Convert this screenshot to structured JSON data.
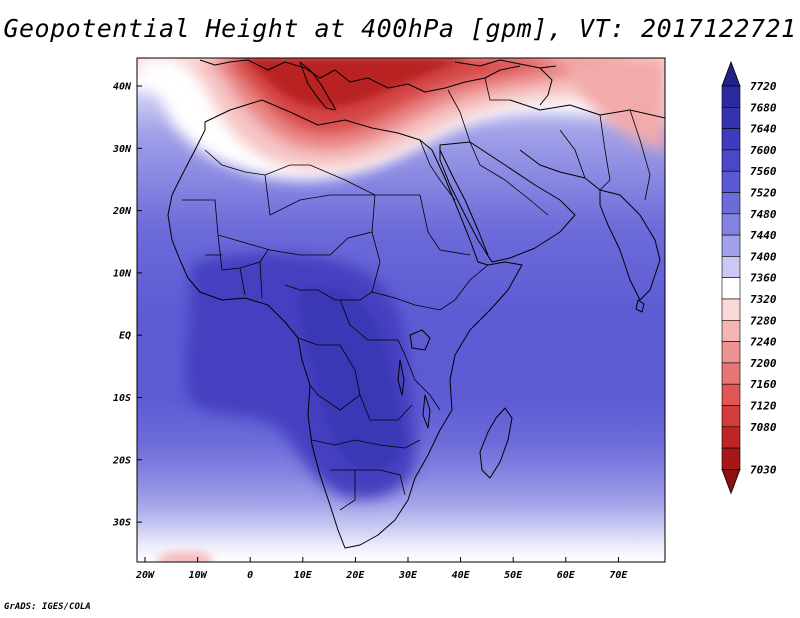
{
  "title": "Geopotential Height at 400hPa [gpm], VT: 2017122721",
  "credit": "GrADS: IGES/COLA",
  "axes": {
    "x_ticks": [
      "20W",
      "10W",
      "0",
      "10E",
      "20E",
      "30E",
      "40E",
      "50E",
      "60E",
      "70E"
    ],
    "y_ticks": [
      "40N",
      "30N",
      "20N",
      "10N",
      "EQ",
      "10S",
      "20S",
      "30S"
    ]
  },
  "colorbar": {
    "levels": [
      "7720",
      "7680",
      "7640",
      "7600",
      "7560",
      "7520",
      "7480",
      "7440",
      "7400",
      "7360",
      "7320",
      "7280",
      "7240",
      "7200",
      "7160",
      "7120",
      "7080",
      "7030"
    ],
    "colors": [
      "#2c2a9e",
      "#3633b0",
      "#3e3bbf",
      "#4a48c8",
      "#5a58d2",
      "#6c6bd9",
      "#8382e0",
      "#a1a0e8",
      "#c9c9f3",
      "#ffffff",
      "#fbd9d9",
      "#f5b5b5",
      "#ee9393",
      "#e87474",
      "#e05656",
      "#d43b3b",
      "#c02525",
      "#a51818"
    ],
    "top_arrow_color": "#23218a",
    "bottom_arrow_color": "#8c1010"
  }
}
